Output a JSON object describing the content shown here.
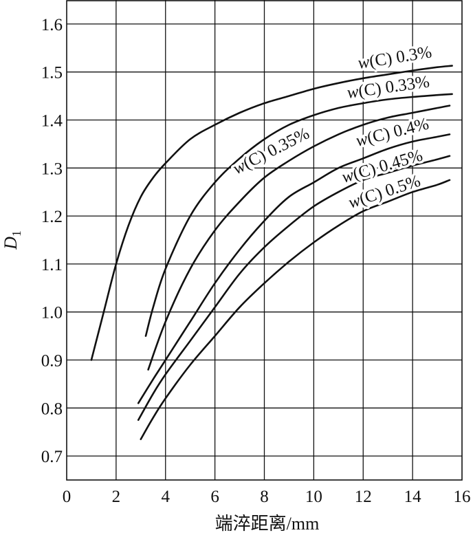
{
  "chart_data": {
    "type": "line",
    "title": "",
    "xlabel": "端淬距离/mm",
    "ylabel": "D",
    "ylabel_subscript": "1",
    "xlim": [
      0,
      16
    ],
    "ylim": [
      0.65,
      1.65
    ],
    "xticks": [
      0,
      2,
      4,
      6,
      8,
      10,
      12,
      14,
      16
    ],
    "yticks": [
      0.7,
      0.8,
      0.9,
      1.0,
      1.1,
      1.2,
      1.3,
      1.4,
      1.5,
      1.6
    ],
    "xtick_labels": [
      "0",
      "2",
      "4",
      "6",
      "8",
      "10",
      "12",
      "14",
      "16"
    ],
    "ytick_labels": [
      "0.7",
      "0.8",
      "0.9",
      "1.0",
      "1.1",
      "1.2",
      "1.3",
      "1.4",
      "1.5",
      "1.6"
    ],
    "grid": true,
    "series": [
      {
        "name": "w(C) 0.3%",
        "label_prefix": "w",
        "label_suffix": "(C) 0.3%",
        "x": [
          1.0,
          1.5,
          2.0,
          2.5,
          3.0,
          3.5,
          4.0,
          5.0,
          6.0,
          7.0,
          8.0,
          9.0,
          10.0,
          11.0,
          12.0,
          13.0,
          14.0,
          15.0,
          15.6
        ],
        "y": [
          0.9,
          1.0,
          1.1,
          1.18,
          1.24,
          1.28,
          1.31,
          1.36,
          1.39,
          1.415,
          1.435,
          1.45,
          1.465,
          1.477,
          1.487,
          1.495,
          1.503,
          1.51,
          1.513
        ]
      },
      {
        "name": "w(C) 0.33%",
        "label_prefix": "w",
        "label_suffix": "(C) 0.33%",
        "x": [
          3.2,
          3.5,
          4.0,
          5.0,
          6.0,
          7.0,
          8.0,
          9.0,
          10.0,
          11.0,
          12.0,
          13.0,
          14.0,
          15.0,
          15.6
        ],
        "y": [
          0.95,
          1.01,
          1.09,
          1.2,
          1.27,
          1.32,
          1.36,
          1.39,
          1.41,
          1.425,
          1.435,
          1.443,
          1.448,
          1.452,
          1.454
        ]
      },
      {
        "name": "w(C) 0.35%",
        "label_prefix": "w",
        "label_suffix": "(C) 0.35%",
        "x": [
          3.3,
          4.0,
          5.0,
          6.0,
          7.0,
          8.0,
          9.0,
          10.0,
          11.0,
          12.0,
          13.0,
          14.0,
          15.0,
          15.5
        ],
        "y": [
          0.88,
          0.98,
          1.09,
          1.17,
          1.23,
          1.28,
          1.315,
          1.345,
          1.37,
          1.39,
          1.405,
          1.415,
          1.425,
          1.43
        ]
      },
      {
        "name": "w(C) 0.4%",
        "label_prefix": "w",
        "label_suffix": "(C) 0.4%",
        "x": [
          2.9,
          3.5,
          4.0,
          5.0,
          6.0,
          7.0,
          8.0,
          9.0,
          10.0,
          11.0,
          12.0,
          13.0,
          14.0,
          15.0,
          15.5
        ],
        "y": [
          0.81,
          0.86,
          0.9,
          0.98,
          1.06,
          1.13,
          1.19,
          1.24,
          1.27,
          1.3,
          1.32,
          1.34,
          1.355,
          1.365,
          1.37
        ]
      },
      {
        "name": "w(C) 0.45%",
        "label_prefix": "w",
        "label_suffix": "(C) 0.45%",
        "x": [
          2.9,
          3.5,
          4.0,
          5.0,
          6.0,
          7.0,
          8.0,
          9.0,
          10.0,
          11.0,
          12.0,
          13.0,
          14.0,
          15.0,
          15.5
        ],
        "y": [
          0.775,
          0.83,
          0.87,
          0.94,
          1.01,
          1.08,
          1.135,
          1.18,
          1.22,
          1.25,
          1.275,
          1.29,
          1.305,
          1.318,
          1.325
        ]
      },
      {
        "name": "w(C) 0.5%",
        "label_prefix": "w",
        "label_suffix": "(C) 0.5%",
        "x": [
          3.0,
          3.5,
          4.0,
          5.0,
          6.0,
          7.0,
          8.0,
          9.0,
          10.0,
          11.0,
          12.0,
          13.0,
          14.0,
          15.0,
          15.5
        ],
        "y": [
          0.735,
          0.78,
          0.82,
          0.89,
          0.95,
          1.01,
          1.06,
          1.105,
          1.145,
          1.18,
          1.21,
          1.23,
          1.25,
          1.265,
          1.275
        ]
      }
    ]
  }
}
